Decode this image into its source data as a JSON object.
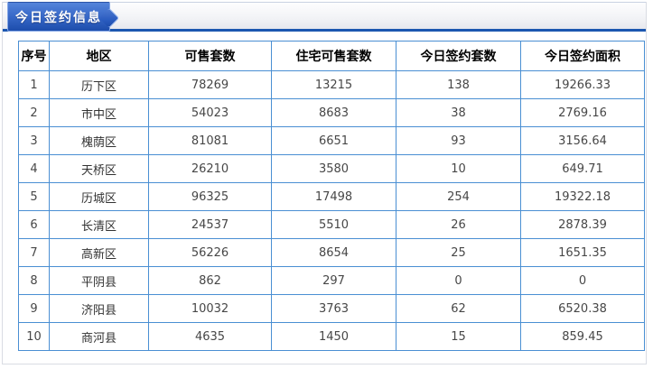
{
  "panel": {
    "title": "今日签约信息"
  },
  "colors": {
    "header_underline": "#1c57b0",
    "tab_blue_top": "#5584da",
    "tab_blue_bottom": "#1d4dac",
    "grid_blue": "#4a8fd3",
    "tab_text": "#ffffff"
  },
  "table": {
    "columns": [
      "序号",
      "地区",
      "可售套数",
      "住宅可售套数",
      "今日签约套数",
      "今日签约面积"
    ],
    "column_ids": [
      "index",
      "district",
      "sellable-units",
      "residential-sellable-units",
      "today-signed-units",
      "today-signed-area"
    ],
    "rows": [
      [
        "1",
        "历下区",
        "78269",
        "13215",
        "138",
        "19266.33"
      ],
      [
        "2",
        "市中区",
        "54023",
        "8683",
        "38",
        "2769.16"
      ],
      [
        "3",
        "槐荫区",
        "81081",
        "6651",
        "93",
        "3156.64"
      ],
      [
        "4",
        "天桥区",
        "26210",
        "3580",
        "10",
        "649.71"
      ],
      [
        "5",
        "历城区",
        "96325",
        "17498",
        "254",
        "19322.18"
      ],
      [
        "6",
        "长清区",
        "24537",
        "5510",
        "26",
        "2878.39"
      ],
      [
        "7",
        "高新区",
        "56226",
        "8654",
        "25",
        "1651.35"
      ],
      [
        "8",
        "平阴县",
        "862",
        "297",
        "0",
        "0"
      ],
      [
        "9",
        "济阳县",
        "10032",
        "3763",
        "62",
        "6520.38"
      ],
      [
        "10",
        "商河县",
        "4635",
        "1450",
        "15",
        "859.45"
      ]
    ]
  }
}
